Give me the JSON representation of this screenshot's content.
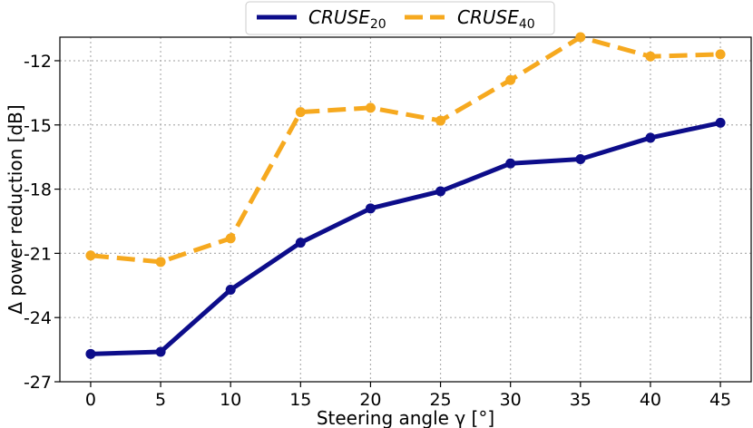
{
  "chart_data": {
    "type": "line",
    "xlabel": "Steering angle γ [°]",
    "ylabel": "Δ power reduction [dB]",
    "x": [
      0,
      5,
      10,
      15,
      20,
      25,
      30,
      35,
      40,
      45
    ],
    "xticks": [
      "0",
      "5",
      "10",
      "15",
      "20",
      "25",
      "30",
      "35",
      "40",
      "45"
    ],
    "yticks": [
      "-12",
      "-15",
      "-18",
      "-21",
      "-24",
      "-27"
    ],
    "ytick_values": [
      -12,
      -15,
      -18,
      -21,
      -24,
      -27
    ],
    "xlim": [
      -2.2,
      47.2
    ],
    "ylim": [
      -27,
      -10.9
    ],
    "grid": true,
    "legend_position": "top-center",
    "series": [
      {
        "name": "CRUSE",
        "subscript": "20",
        "color": "#0d0d8a",
        "style": "solid",
        "values": [
          -25.7,
          -25.6,
          -22.7,
          -20.5,
          -18.9,
          -18.1,
          -16.8,
          -16.6,
          -15.6,
          -14.9
        ]
      },
      {
        "name": "CRUSE",
        "subscript": "40",
        "color": "#f6a91f",
        "style": "dashed",
        "values": [
          -21.1,
          -21.4,
          -20.3,
          -14.4,
          -14.2,
          -14.8,
          -12.9,
          -10.9,
          -11.8,
          -11.7
        ]
      }
    ]
  }
}
